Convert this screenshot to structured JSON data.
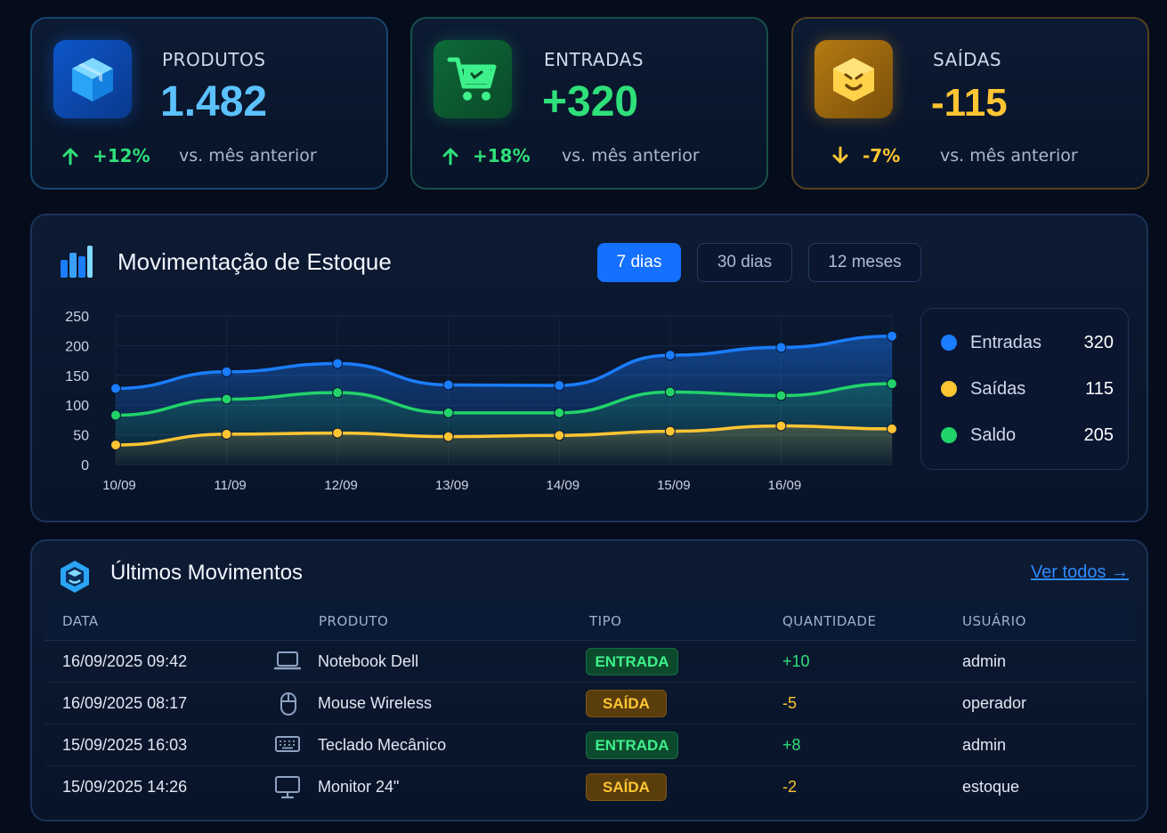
{
  "kpis": [
    {
      "label": "PRODUTOS",
      "value": "1.482",
      "trend": "+12%",
      "trend_dir": "up",
      "compare": "vs. mês anterior",
      "icon": "box-icon",
      "accent": "#5cc2ff"
    },
    {
      "label": "ENTRADAS",
      "value": "+320",
      "trend": "+18%",
      "trend_dir": "up",
      "compare": "vs. mês anterior",
      "icon": "cart-icon",
      "accent": "#2fe07a"
    },
    {
      "label": "SAÍDAS",
      "value": "-115",
      "trend": "-7%",
      "trend_dir": "down",
      "compare": "vs. mês anterior",
      "icon": "box-out-icon",
      "accent": "#ffc533"
    }
  ],
  "movement": {
    "title": "Movimentação de Estoque",
    "ranges": [
      "7 dias",
      "30 dias",
      "12 meses"
    ],
    "active_range": "7 dias",
    "legend": [
      {
        "name": "Entradas",
        "value": "320",
        "color": "#1b7dff"
      },
      {
        "name": "Saídas",
        "value": "115",
        "color": "#ffc533"
      },
      {
        "name": "Saldo",
        "value": "205",
        "color": "#22d36a"
      }
    ]
  },
  "chart_data": {
    "type": "area",
    "x": [
      "10/09",
      "11/09",
      "12/09",
      "13/09",
      "14/09",
      "15/09",
      "16/09",
      ""
    ],
    "series": [
      {
        "name": "Entradas",
        "color": "#1b7dff",
        "values": [
          128,
          156,
          170,
          134,
          133,
          184,
          197,
          216
        ]
      },
      {
        "name": "Saldo",
        "color": "#22d36a",
        "values": [
          83,
          110,
          121,
          87,
          87,
          122,
          116,
          136
        ]
      },
      {
        "name": "Saídas",
        "color": "#ffc533",
        "values": [
          33,
          51,
          53,
          47,
          49,
          56,
          65,
          60
        ]
      }
    ],
    "y_ticks": [
      0,
      50,
      100,
      150,
      200,
      250
    ],
    "ylim": [
      0,
      250
    ],
    "grid": true,
    "legend_position": "right"
  },
  "latest": {
    "title": "Últimos Movimentos",
    "see_all": "Ver todos →",
    "columns": [
      "DATA",
      "PRODUTO",
      "TIPO",
      "QUANTIDADE",
      "USUÁRIO"
    ],
    "rows": [
      {
        "date": "16/09/2025 09:42",
        "product": "Notebook Dell",
        "product_icon": "laptop-icon",
        "type": "ENTRADA",
        "qty": "+10",
        "user": "admin"
      },
      {
        "date": "16/09/2025 08:17",
        "product": "Mouse Wireless",
        "product_icon": "mouse-icon",
        "type": "SAÍDA",
        "qty": "-5",
        "user": "operador"
      },
      {
        "date": "15/09/2025 16:03",
        "product": "Teclado Mecânico",
        "product_icon": "keyboard-icon",
        "type": "ENTRADA",
        "qty": "+8",
        "user": "admin"
      },
      {
        "date": "15/09/2025 14:26",
        "product": "Monitor 24\"",
        "product_icon": "monitor-icon",
        "type": "SAÍDA",
        "qty": "-2",
        "user": "estoque"
      }
    ]
  }
}
